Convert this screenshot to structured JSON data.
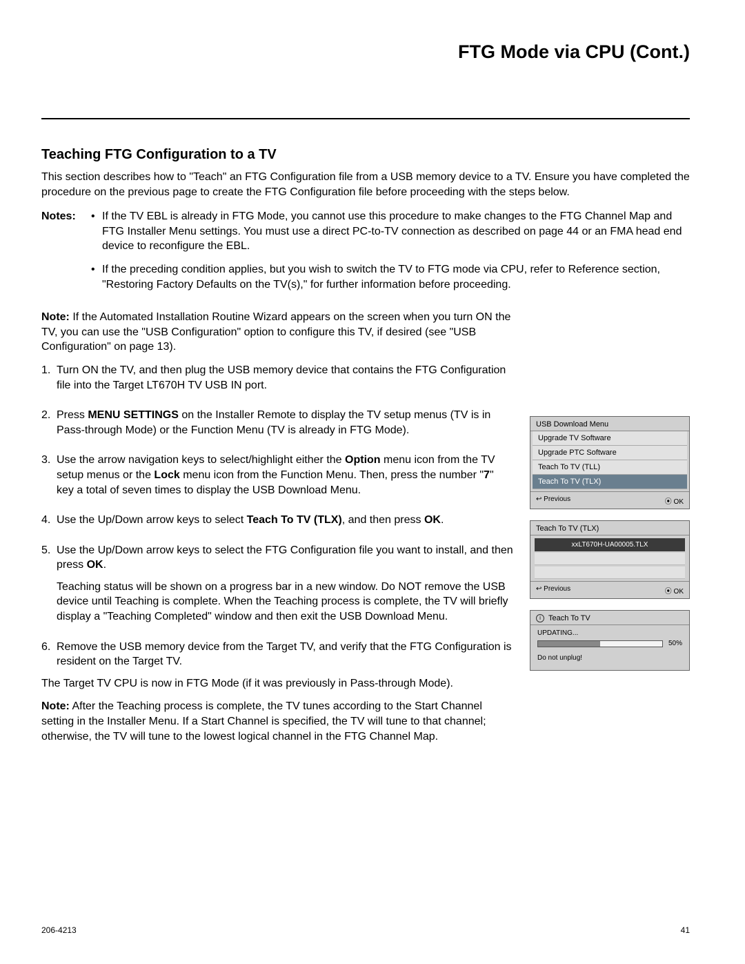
{
  "page_title": "FTG Mode via CPU (Cont.)",
  "section_title": "Teaching FTG Configuration to a TV",
  "intro": "This section describes how to \"Teach\" an FTG Configuration file from a USB memory device to a TV. Ensure you have completed the procedure on the previous page to create the FTG Configuration file before proceeding with the steps below.",
  "notes_label": "Notes:",
  "notes": [
    "If the TV EBL is already in FTG Mode, you cannot use this procedure to make changes to the FTG Channel Map and FTG Installer Menu settings. You must use a direct PC-to-TV connection as described on page 44 or an FMA head end device to reconfigure the EBL.",
    "If the preceding condition applies, but you wish to switch the TV to FTG mode via CPU, refer to Reference section, \"Restoring Factory Defaults on the TV(s),\" for further information before proceeding."
  ],
  "pre_note_label": "Note:",
  "pre_note": " If the Automated Installation Routine Wizard appears on the screen when you turn ON the TV, you can use the \"USB Configuration\" option to configure this TV, if desired (see \"USB Configuration\" on page 13).",
  "steps": {
    "s1": "Turn ON the TV, and then plug the USB memory device that contains the FTG Configuration file into the Target LT670H TV USB IN port.",
    "s2a": "Press ",
    "s2b": "MENU SETTINGS",
    "s2c": " on the Installer Remote to display the TV setup menus (TV is in Pass-through Mode) or the Function Menu (TV is already in FTG Mode).",
    "s3a": "Use the arrow navigation keys to select/highlight either the ",
    "s3b": "Option",
    "s3c": " menu icon from the TV setup menus or the ",
    "s3d": "Lock",
    "s3e": " menu icon from the Function Menu. Then, press the number \"",
    "s3f": "7",
    "s3g": "\" key a total of seven times to display the USB Download Menu.",
    "s4a": "Use the Up/Down arrow keys to select ",
    "s4b": "Teach To TV (TLX)",
    "s4c": ", and then press ",
    "s4d": "OK",
    "s4e": ".",
    "s5a": "Use the Up/Down arrow keys to select the FTG Configuration file you want to install, and then press ",
    "s5b": "OK",
    "s5c": ".",
    "s5p2": "Teaching status will be shown on a progress bar in a new window. Do NOT remove the USB device until Teaching is complete. When the Teaching process is complete, the TV will briefly display a \"Teaching Completed\" window and then exit the USB Download Menu.",
    "s6": "Remove the USB memory device from the Target TV, and verify that the FTG Configuration is resident on the Target TV."
  },
  "post_para": "The Target TV CPU is now in FTG Mode (if it was previously in Pass-through Mode).",
  "post_note_label": "Note:",
  "post_note": " After the Teaching process is complete, the TV tunes according to the Start Channel setting in the Installer Menu. If a Start Channel is specified, the TV will tune to that channel; otherwise, the TV will tune to the lowest logical channel in the FTG Channel Map.",
  "menu1": {
    "title": "USB Download Menu",
    "items": [
      "Upgrade TV Software",
      "Upgrade PTC Software",
      "Teach To TV (TLL)",
      "Teach To TV (TLX)"
    ],
    "selected_index": 3,
    "prev": "Previous",
    "ok": "OK",
    "prev_icon": "↩",
    "ok_icon": "⦿"
  },
  "menu2": {
    "title": "Teach To TV (TLX)",
    "file": "xxLT670H-UA00005.TLX",
    "prev": "Previous",
    "ok": "OK",
    "prev_icon": "↩",
    "ok_icon": "⦿"
  },
  "menu3": {
    "title": "Teach To TV",
    "info_icon": "i",
    "status": "UPDATING...",
    "percent": 50,
    "percent_label": "50%",
    "warn": "Do not unplug!",
    "bar_fill_color": "#888888",
    "bar_bg_color": "#f4f4f4"
  },
  "footer": {
    "doc_id": "206-4213",
    "page_num": "41"
  },
  "colors": {
    "ui_bg": "#d0d0d0",
    "ui_row_bg": "#e2e2e2",
    "ui_selected_bg": "#6a7f8f",
    "ui_selected_fg": "#ffffff",
    "file_row_bg": "#3a3a3a"
  }
}
